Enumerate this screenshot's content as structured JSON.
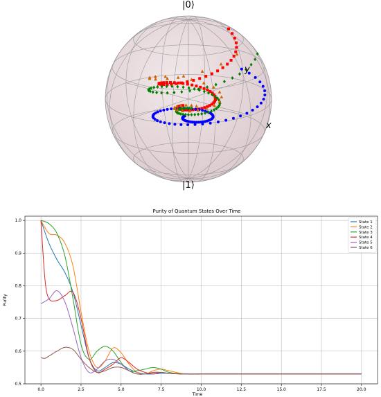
{
  "chart_data": [
    {
      "type": "scatter",
      "labels": {
        "top": "|0⟩",
        "bottom": "|1⟩",
        "x_axis": "x",
        "y_axis": "y"
      },
      "marker_colors": [
        "#ff0000",
        "#0000ff",
        "#008000",
        "#cc6600"
      ],
      "sphere_color": "#e8d8dc"
    },
    {
      "type": "line",
      "title": "Purity of Quantum States Over Time",
      "xlabel": "Time",
      "ylabel": "Purity",
      "xlim": [
        -1,
        21
      ],
      "ylim": [
        0.5,
        1.013
      ],
      "xticks": [
        "0.0",
        "2.5",
        "5.0",
        "7.5",
        "10.0",
        "12.5",
        "15.0",
        "17.5",
        "20.0"
      ],
      "yticks": [
        "0.5",
        "0.6",
        "0.7",
        "0.8",
        "0.9",
        "1.0"
      ],
      "grid": true,
      "legend_position": "top-right",
      "series": [
        {
          "name": "State 1",
          "color": "#1f77b4",
          "x": [
            0,
            0.5,
            1,
            1.5,
            2,
            2.5,
            3,
            3.5,
            4,
            4.5,
            5,
            5.5,
            6,
            6.5,
            7,
            7.5,
            8,
            9,
            10,
            12,
            15,
            20
          ],
          "y": [
            1.0,
            0.93,
            0.88,
            0.84,
            0.78,
            0.68,
            0.58,
            0.54,
            0.55,
            0.565,
            0.56,
            0.545,
            0.535,
            0.53,
            0.53,
            0.532,
            0.532,
            0.53,
            0.53,
            0.53,
            0.53,
            0.53
          ]
        },
        {
          "name": "State 2",
          "color": "#ff7f0e",
          "x": [
            0,
            0.5,
            1,
            1.5,
            2,
            2.5,
            3,
            3.5,
            4,
            4.5,
            5,
            5.5,
            6,
            6.5,
            7,
            7.5,
            8,
            9,
            10,
            12,
            15,
            20
          ],
          "y": [
            1.0,
            0.96,
            0.955,
            0.93,
            0.86,
            0.72,
            0.6,
            0.55,
            0.57,
            0.61,
            0.595,
            0.56,
            0.535,
            0.53,
            0.54,
            0.545,
            0.54,
            0.53,
            0.53,
            0.53,
            0.53,
            0.53
          ]
        },
        {
          "name": "State 3",
          "color": "#2ca02c",
          "x": [
            0,
            0.5,
            1,
            1.5,
            2,
            2.5,
            3,
            3.5,
            4,
            4.5,
            5,
            5.5,
            6,
            6.5,
            7,
            7.5,
            8,
            9,
            10,
            12,
            15,
            20
          ],
          "y": [
            1.0,
            0.99,
            0.96,
            0.89,
            0.76,
            0.62,
            0.575,
            0.6,
            0.615,
            0.6,
            0.565,
            0.54,
            0.54,
            0.545,
            0.55,
            0.545,
            0.535,
            0.53,
            0.53,
            0.53,
            0.53,
            0.53
          ]
        },
        {
          "name": "State 4",
          "color": "#d62728",
          "x": [
            0,
            0.25,
            0.5,
            1,
            1.5,
            2,
            2.5,
            3,
            3.5,
            4,
            4.5,
            5,
            5.5,
            6,
            6.5,
            7,
            7.5,
            8,
            9,
            10,
            12,
            15,
            20
          ],
          "y": [
            1.0,
            0.82,
            0.76,
            0.755,
            0.77,
            0.78,
            0.7,
            0.58,
            0.535,
            0.545,
            0.56,
            0.58,
            0.565,
            0.545,
            0.535,
            0.53,
            0.535,
            0.532,
            0.53,
            0.53,
            0.53,
            0.53,
            0.53
          ]
        },
        {
          "name": "State 5",
          "color": "#9467bd",
          "x": [
            0,
            0.5,
            1,
            1.5,
            2,
            2.5,
            3,
            3.5,
            4,
            4.5,
            5,
            5.5,
            6,
            6.5,
            7,
            7.5,
            8,
            9,
            10,
            12,
            15,
            20
          ],
          "y": [
            0.745,
            0.76,
            0.785,
            0.75,
            0.67,
            0.58,
            0.535,
            0.545,
            0.57,
            0.575,
            0.56,
            0.54,
            0.53,
            0.53,
            0.535,
            0.535,
            0.532,
            0.53,
            0.53,
            0.53,
            0.53,
            0.53
          ]
        },
        {
          "name": "State 6",
          "color": "#8c564b",
          "x": [
            0,
            0.25,
            0.5,
            1,
            1.5,
            2,
            2.5,
            3,
            3.5,
            4,
            4.5,
            5,
            5.5,
            6,
            6.5,
            7,
            7.5,
            8,
            9,
            10,
            12,
            15,
            20
          ],
          "y": [
            0.58,
            0.578,
            0.585,
            0.6,
            0.612,
            0.605,
            0.575,
            0.55,
            0.535,
            0.54,
            0.55,
            0.55,
            0.54,
            0.53,
            0.53,
            0.535,
            0.535,
            0.532,
            0.53,
            0.53,
            0.53,
            0.53,
            0.53
          ]
        }
      ]
    }
  ]
}
